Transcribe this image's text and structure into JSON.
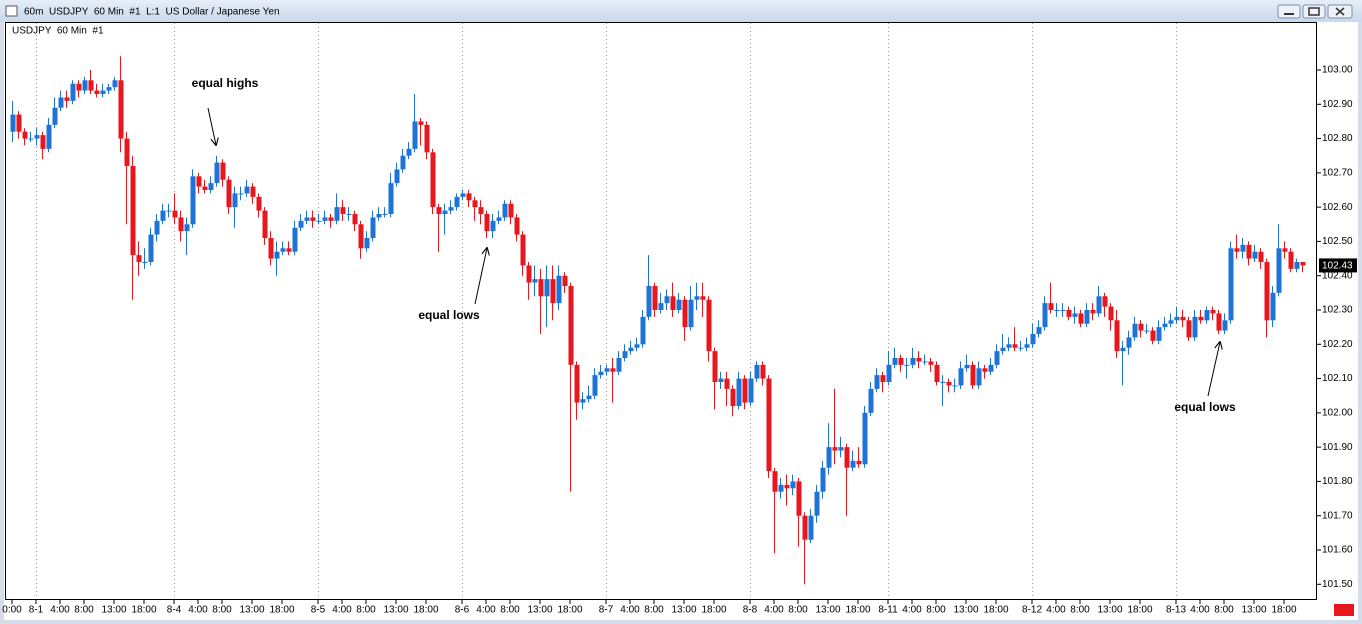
{
  "window": {
    "title": "60m  USDJPY  60 Min  #1  L:1  US Dollar / Japanese Yen"
  },
  "chart_data": {
    "type": "candlestick",
    "title": "USDJPY  60 Min  #1",
    "annotations": [
      "equal highs",
      "equal lows",
      "equal lows"
    ],
    "up_color": "#1e74d6",
    "down_color": "#e8161d",
    "ylim": [
      101.46,
      103.14
    ],
    "yticks": [
      {
        "value": 101.5,
        "label": "101.50"
      },
      {
        "value": 101.6,
        "label": "101.60"
      },
      {
        "value": 101.7,
        "label": "101.70"
      },
      {
        "value": 101.8,
        "label": "101.80"
      },
      {
        "value": 101.9,
        "label": "101.90"
      },
      {
        "value": 102,
        "label": "102.00"
      },
      {
        "value": 102.1,
        "label": "102.10"
      },
      {
        "value": 102.2,
        "label": "102.20"
      },
      {
        "value": 102.3,
        "label": "102.30"
      },
      {
        "value": 102.4,
        "label": "102.40"
      },
      {
        "value": 102.5,
        "label": "102.50"
      },
      {
        "value": 102.6,
        "label": "102.60"
      },
      {
        "value": 102.7,
        "label": "102.70"
      },
      {
        "value": 102.8,
        "label": "102.80"
      },
      {
        "value": 102.9,
        "label": "102.90"
      },
      {
        "value": 103,
        "label": "103.00"
      }
    ],
    "categories": [
      "0:00",
      null,
      null,
      null,
      "8-1",
      null,
      null,
      null,
      "4:00",
      null,
      null,
      null,
      "8:00",
      null,
      null,
      null,
      null,
      "13:00",
      null,
      null,
      null,
      null,
      "18:00",
      null,
      null,
      null,
      null,
      "8-4",
      null,
      null,
      null,
      "4:00",
      null,
      null,
      null,
      "8:00",
      null,
      null,
      null,
      null,
      "13:00",
      null,
      null,
      null,
      null,
      "18:00",
      null,
      null,
      null,
      null,
      null,
      "8-5",
      null,
      null,
      null,
      "4:00",
      null,
      null,
      null,
      "8:00",
      null,
      null,
      null,
      null,
      "13:00",
      null,
      null,
      null,
      null,
      "18:00",
      null,
      null,
      null,
      null,
      null,
      "8-6",
      null,
      null,
      null,
      "4:00",
      null,
      null,
      null,
      "8:00",
      null,
      null,
      null,
      null,
      "13:00",
      null,
      null,
      null,
      null,
      "18:00",
      null,
      null,
      null,
      null,
      null,
      "8-7",
      null,
      null,
      null,
      "4:00",
      null,
      null,
      null,
      "8:00",
      null,
      null,
      null,
      null,
      "13:00",
      null,
      null,
      null,
      null,
      "18:00",
      null,
      null,
      null,
      null,
      null,
      "8-8",
      null,
      null,
      null,
      "4:00",
      null,
      null,
      null,
      "8:00",
      null,
      null,
      null,
      null,
      "13:00",
      null,
      null,
      null,
      null,
      "18:00",
      null,
      null,
      null,
      null,
      "8-11",
      null,
      null,
      null,
      "4:00",
      null,
      null,
      null,
      "8:00",
      null,
      null,
      null,
      null,
      "13:00",
      null,
      null,
      null,
      null,
      "18:00",
      null,
      null,
      null,
      null,
      null,
      "8-12",
      null,
      null,
      null,
      "4:00",
      null,
      null,
      null,
      "8:00",
      null,
      null,
      null,
      null,
      "13:00",
      null,
      null,
      null,
      null,
      "18:00",
      null,
      null,
      null,
      null,
      null,
      "8-13",
      null,
      null,
      null,
      "4:00",
      null,
      null,
      null,
      "8:00",
      null,
      null,
      null,
      null,
      "13:00",
      null,
      null,
      null,
      null,
      "18:00",
      null,
      null,
      null
    ],
    "open": [
      102.82,
      102.87,
      102.82,
      102.8,
      102.8,
      102.81,
      102.77,
      102.84,
      102.89,
      102.92,
      102.91,
      102.96,
      102.94,
      102.97,
      102.94,
      102.93,
      102.94,
      102.95,
      102.97,
      102.8,
      102.72,
      102.46,
      102.44,
      102.44,
      102.52,
      102.56,
      102.59,
      102.59,
      102.57,
      102.53,
      102.55,
      102.69,
      102.66,
      102.65,
      102.67,
      102.73,
      102.68,
      102.6,
      102.64,
      102.64,
      102.66,
      102.63,
      102.59,
      102.51,
      102.45,
      102.47,
      102.48,
      102.47,
      102.54,
      102.56,
      102.57,
      102.56,
      102.56,
      102.57,
      102.56,
      102.6,
      102.58,
      102.58,
      102.55,
      102.48,
      102.51,
      102.57,
      102.58,
      102.58,
      102.67,
      102.71,
      102.75,
      102.77,
      102.85,
      102.84,
      102.76,
      102.6,
      102.58,
      102.59,
      102.6,
      102.63,
      102.64,
      102.62,
      102.6,
      102.58,
      102.53,
      102.56,
      102.57,
      102.61,
      102.57,
      102.52,
      102.43,
      102.38,
      102.39,
      102.34,
      102.39,
      102.32,
      102.4,
      102.37,
      102.14,
      102.03,
      102.04,
      102.05,
      102.11,
      102.12,
      102.13,
      102.12,
      102.16,
      102.18,
      102.19,
      102.2,
      102.28,
      102.37,
      102.3,
      102.32,
      102.34,
      102.3,
      102.33,
      102.25,
      102.33,
      102.34,
      102.33,
      102.18,
      102.09,
      102.1,
      102.07,
      102.02,
      102.1,
      102.03,
      102.1,
      102.14,
      102.1,
      101.83,
      101.77,
      101.79,
      101.78,
      101.8,
      101.7,
      101.63,
      101.7,
      101.77,
      101.84,
      101.9,
      101.89,
      101.9,
      101.84,
      101.86,
      101.85,
      102.0,
      102.07,
      102.11,
      102.09,
      102.14,
      102.16,
      102.14,
      102.14,
      102.16,
      102.15,
      102.15,
      102.14,
      102.09,
      102.09,
      102.08,
      102.08,
      102.13,
      102.14,
      102.08,
      102.13,
      102.12,
      102.14,
      102.18,
      102.19,
      102.2,
      102.19,
      102.19,
      102.2,
      102.23,
      102.25,
      102.32,
      102.3,
      102.3,
      102.3,
      102.28,
      102.29,
      102.26,
      102.3,
      102.29,
      102.34,
      102.31,
      102.27,
      102.18,
      102.19,
      102.22,
      102.26,
      102.24,
      102.24,
      102.21,
      102.25,
      102.26,
      102.27,
      102.28,
      102.27,
      102.22,
      102.28,
      102.27,
      102.3,
      102.29,
      102.24,
      102.27,
      102.48,
      102.47,
      102.49,
      102.45,
      102.47,
      102.44,
      102.27,
      102.35,
      102.48,
      102.47,
      102.42,
      102.44
    ],
    "high": [
      102.91,
      102.88,
      102.83,
      102.82,
      102.83,
      102.82,
      102.86,
      102.92,
      102.94,
      102.94,
      102.97,
      102.97,
      102.98,
      103.0,
      102.96,
      102.96,
      102.96,
      102.98,
      103.04,
      102.82,
      102.75,
      102.5,
      102.48,
      102.54,
      102.58,
      102.61,
      102.61,
      102.64,
      102.59,
      102.57,
      102.71,
      102.7,
      102.68,
      102.69,
      102.75,
      102.74,
      102.69,
      102.66,
      102.66,
      102.68,
      102.67,
      102.64,
      102.6,
      102.53,
      102.5,
      102.5,
      102.5,
      102.56,
      102.58,
      102.59,
      102.59,
      102.58,
      102.59,
      102.58,
      102.64,
      102.62,
      102.6,
      102.59,
      102.56,
      102.53,
      102.59,
      102.6,
      102.6,
      102.7,
      102.73,
      102.77,
      102.79,
      102.93,
      102.86,
      102.85,
      102.77,
      102.61,
      102.61,
      102.62,
      102.64,
      102.65,
      102.65,
      102.63,
      102.62,
      102.59,
      102.58,
      102.59,
      102.62,
      102.62,
      102.58,
      102.53,
      102.44,
      102.43,
      102.42,
      102.43,
      102.43,
      102.43,
      102.41,
      102.38,
      102.15,
      102.06,
      102.08,
      102.13,
      102.14,
      102.14,
      102.16,
      102.18,
      102.2,
      102.21,
      102.22,
      102.3,
      102.46,
      102.38,
      102.35,
      102.36,
      102.38,
      102.35,
      102.34,
      102.37,
      102.38,
      102.38,
      102.34,
      102.19,
      102.12,
      102.12,
      102.08,
      102.12,
      102.11,
      102.12,
      102.15,
      102.15,
      102.11,
      101.84,
      101.81,
      101.82,
      101.82,
      101.81,
      101.71,
      101.72,
      101.79,
      101.86,
      101.97,
      102.07,
      101.93,
      101.91,
      101.89,
      101.9,
      102.02,
      102.09,
      102.13,
      102.12,
      102.18,
      102.19,
      102.17,
      102.16,
      102.19,
      102.18,
      102.17,
      102.16,
      102.15,
      102.11,
      102.1,
      102.1,
      102.15,
      102.17,
      102.15,
      102.15,
      102.14,
      102.16,
      102.2,
      102.23,
      102.22,
      102.25,
      102.21,
      102.22,
      102.26,
      102.27,
      102.34,
      102.38,
      102.32,
      102.32,
      102.31,
      102.31,
      102.3,
      102.32,
      102.32,
      102.37,
      102.35,
      102.32,
      102.3,
      102.21,
      102.24,
      102.28,
      102.27,
      102.26,
      102.25,
      102.27,
      102.28,
      102.29,
      102.31,
      102.3,
      102.28,
      102.3,
      102.3,
      102.31,
      102.31,
      102.3,
      102.29,
      102.5,
      102.52,
      102.51,
      102.5,
      102.49,
      102.48,
      102.45,
      102.37,
      102.55,
      102.5,
      102.48,
      102.45,
      102.44
    ],
    "low": [
      102.79,
      102.8,
      102.78,
      102.79,
      102.78,
      102.74,
      102.76,
      102.83,
      102.88,
      102.89,
      102.9,
      102.92,
      102.93,
      102.93,
      102.92,
      102.92,
      102.93,
      102.94,
      102.76,
      102.55,
      102.33,
      102.4,
      102.42,
      102.43,
      102.5,
      102.55,
      102.57,
      102.55,
      102.5,
      102.46,
      102.54,
      102.64,
      102.64,
      102.64,
      102.66,
      102.66,
      102.58,
      102.54,
      102.62,
      102.63,
      102.61,
      102.57,
      102.49,
      102.43,
      102.4,
      102.46,
      102.46,
      102.46,
      102.53,
      102.55,
      102.54,
      102.55,
      102.55,
      102.54,
      102.55,
      102.56,
      102.56,
      102.53,
      102.45,
      102.47,
      102.5,
      102.56,
      102.57,
      102.57,
      102.66,
      102.7,
      102.74,
      102.76,
      102.78,
      102.74,
      102.58,
      102.47,
      102.52,
      102.58,
      102.59,
      102.62,
      102.6,
      102.56,
      102.55,
      102.51,
      102.51,
      102.55,
      102.56,
      102.55,
      102.5,
      102.4,
      102.33,
      102.34,
      102.23,
      102.25,
      102.27,
      102.3,
      102.35,
      101.77,
      101.98,
      102.01,
      102.03,
      102.04,
      102.1,
      102.11,
      102.03,
      102.11,
      102.15,
      102.17,
      102.18,
      102.19,
      102.27,
      102.28,
      102.29,
      102.3,
      102.28,
      102.29,
      102.21,
      102.24,
      102.3,
      102.28,
      102.15,
      102.01,
      102.07,
      102.02,
      101.99,
      102.01,
      102.01,
      102.02,
      102.09,
      102.08,
      101.81,
      101.59,
      101.75,
      101.73,
      101.76,
      101.61,
      101.5,
      101.62,
      101.68,
      101.75,
      101.82,
      101.85,
      101.87,
      101.7,
      101.83,
      101.84,
      101.84,
      101.99,
      102.06,
      102.06,
      102.08,
      102.13,
      102.12,
      102.1,
      102.13,
      102.13,
      102.14,
      102.12,
      102.08,
      102.02,
      102.06,
      102.06,
      102.07,
      102.12,
      102.07,
      102.07,
      102.1,
      102.11,
      102.13,
      102.17,
      102.18,
      102.18,
      102.18,
      102.18,
      102.19,
      102.22,
      102.24,
      102.29,
      102.28,
      102.28,
      102.27,
      102.26,
      102.25,
      102.25,
      102.27,
      102.28,
      102.28,
      102.24,
      102.16,
      102.08,
      102.17,
      102.21,
      102.22,
      102.23,
      102.2,
      102.2,
      102.24,
      102.25,
      102.26,
      102.25,
      102.21,
      102.21,
      102.26,
      102.26,
      102.27,
      102.23,
      102.23,
      102.26,
      102.45,
      102.45,
      102.43,
      102.44,
      102.42,
      102.22,
      102.25,
      102.34,
      102.45,
      102.41,
      102.41,
      102.41
    ],
    "close": [
      102.87,
      102.82,
      102.8,
      102.8,
      102.81,
      102.77,
      102.84,
      102.89,
      102.92,
      102.91,
      102.96,
      102.94,
      102.97,
      102.94,
      102.93,
      102.94,
      102.95,
      102.97,
      102.8,
      102.72,
      102.46,
      102.44,
      102.44,
      102.52,
      102.56,
      102.59,
      102.59,
      102.57,
      102.53,
      102.55,
      102.69,
      102.66,
      102.65,
      102.67,
      102.73,
      102.68,
      102.6,
      102.64,
      102.64,
      102.66,
      102.63,
      102.59,
      102.51,
      102.45,
      102.47,
      102.48,
      102.47,
      102.54,
      102.56,
      102.57,
      102.56,
      102.56,
      102.57,
      102.56,
      102.6,
      102.58,
      102.58,
      102.55,
      102.48,
      102.51,
      102.57,
      102.58,
      102.58,
      102.67,
      102.71,
      102.75,
      102.77,
      102.85,
      102.84,
      102.76,
      102.6,
      102.58,
      102.59,
      102.6,
      102.63,
      102.64,
      102.62,
      102.6,
      102.58,
      102.53,
      102.56,
      102.57,
      102.61,
      102.57,
      102.52,
      102.43,
      102.38,
      102.39,
      102.34,
      102.39,
      102.32,
      102.4,
      102.37,
      102.14,
      102.03,
      102.04,
      102.05,
      102.11,
      102.12,
      102.13,
      102.12,
      102.16,
      102.18,
      102.19,
      102.2,
      102.28,
      102.37,
      102.3,
      102.32,
      102.34,
      102.3,
      102.33,
      102.25,
      102.33,
      102.34,
      102.33,
      102.18,
      102.09,
      102.1,
      102.07,
      102.02,
      102.1,
      102.03,
      102.1,
      102.14,
      102.1,
      101.83,
      101.77,
      101.79,
      101.78,
      101.8,
      101.7,
      101.63,
      101.7,
      101.77,
      101.84,
      101.9,
      101.89,
      101.9,
      101.84,
      101.86,
      101.85,
      102.0,
      102.07,
      102.11,
      102.09,
      102.14,
      102.16,
      102.14,
      102.14,
      102.16,
      102.15,
      102.15,
      102.14,
      102.09,
      102.09,
      102.08,
      102.08,
      102.13,
      102.14,
      102.08,
      102.13,
      102.12,
      102.14,
      102.18,
      102.19,
      102.2,
      102.19,
      102.19,
      102.2,
      102.23,
      102.25,
      102.32,
      102.3,
      102.3,
      102.3,
      102.28,
      102.29,
      102.26,
      102.3,
      102.29,
      102.34,
      102.31,
      102.27,
      102.18,
      102.19,
      102.22,
      102.26,
      102.24,
      102.24,
      102.21,
      102.25,
      102.26,
      102.27,
      102.28,
      102.27,
      102.22,
      102.28,
      102.27,
      102.3,
      102.29,
      102.24,
      102.27,
      102.48,
      102.47,
      102.49,
      102.45,
      102.47,
      102.44,
      102.27,
      102.35,
      102.48,
      102.47,
      102.42,
      102.44,
      102.43
    ]
  }
}
